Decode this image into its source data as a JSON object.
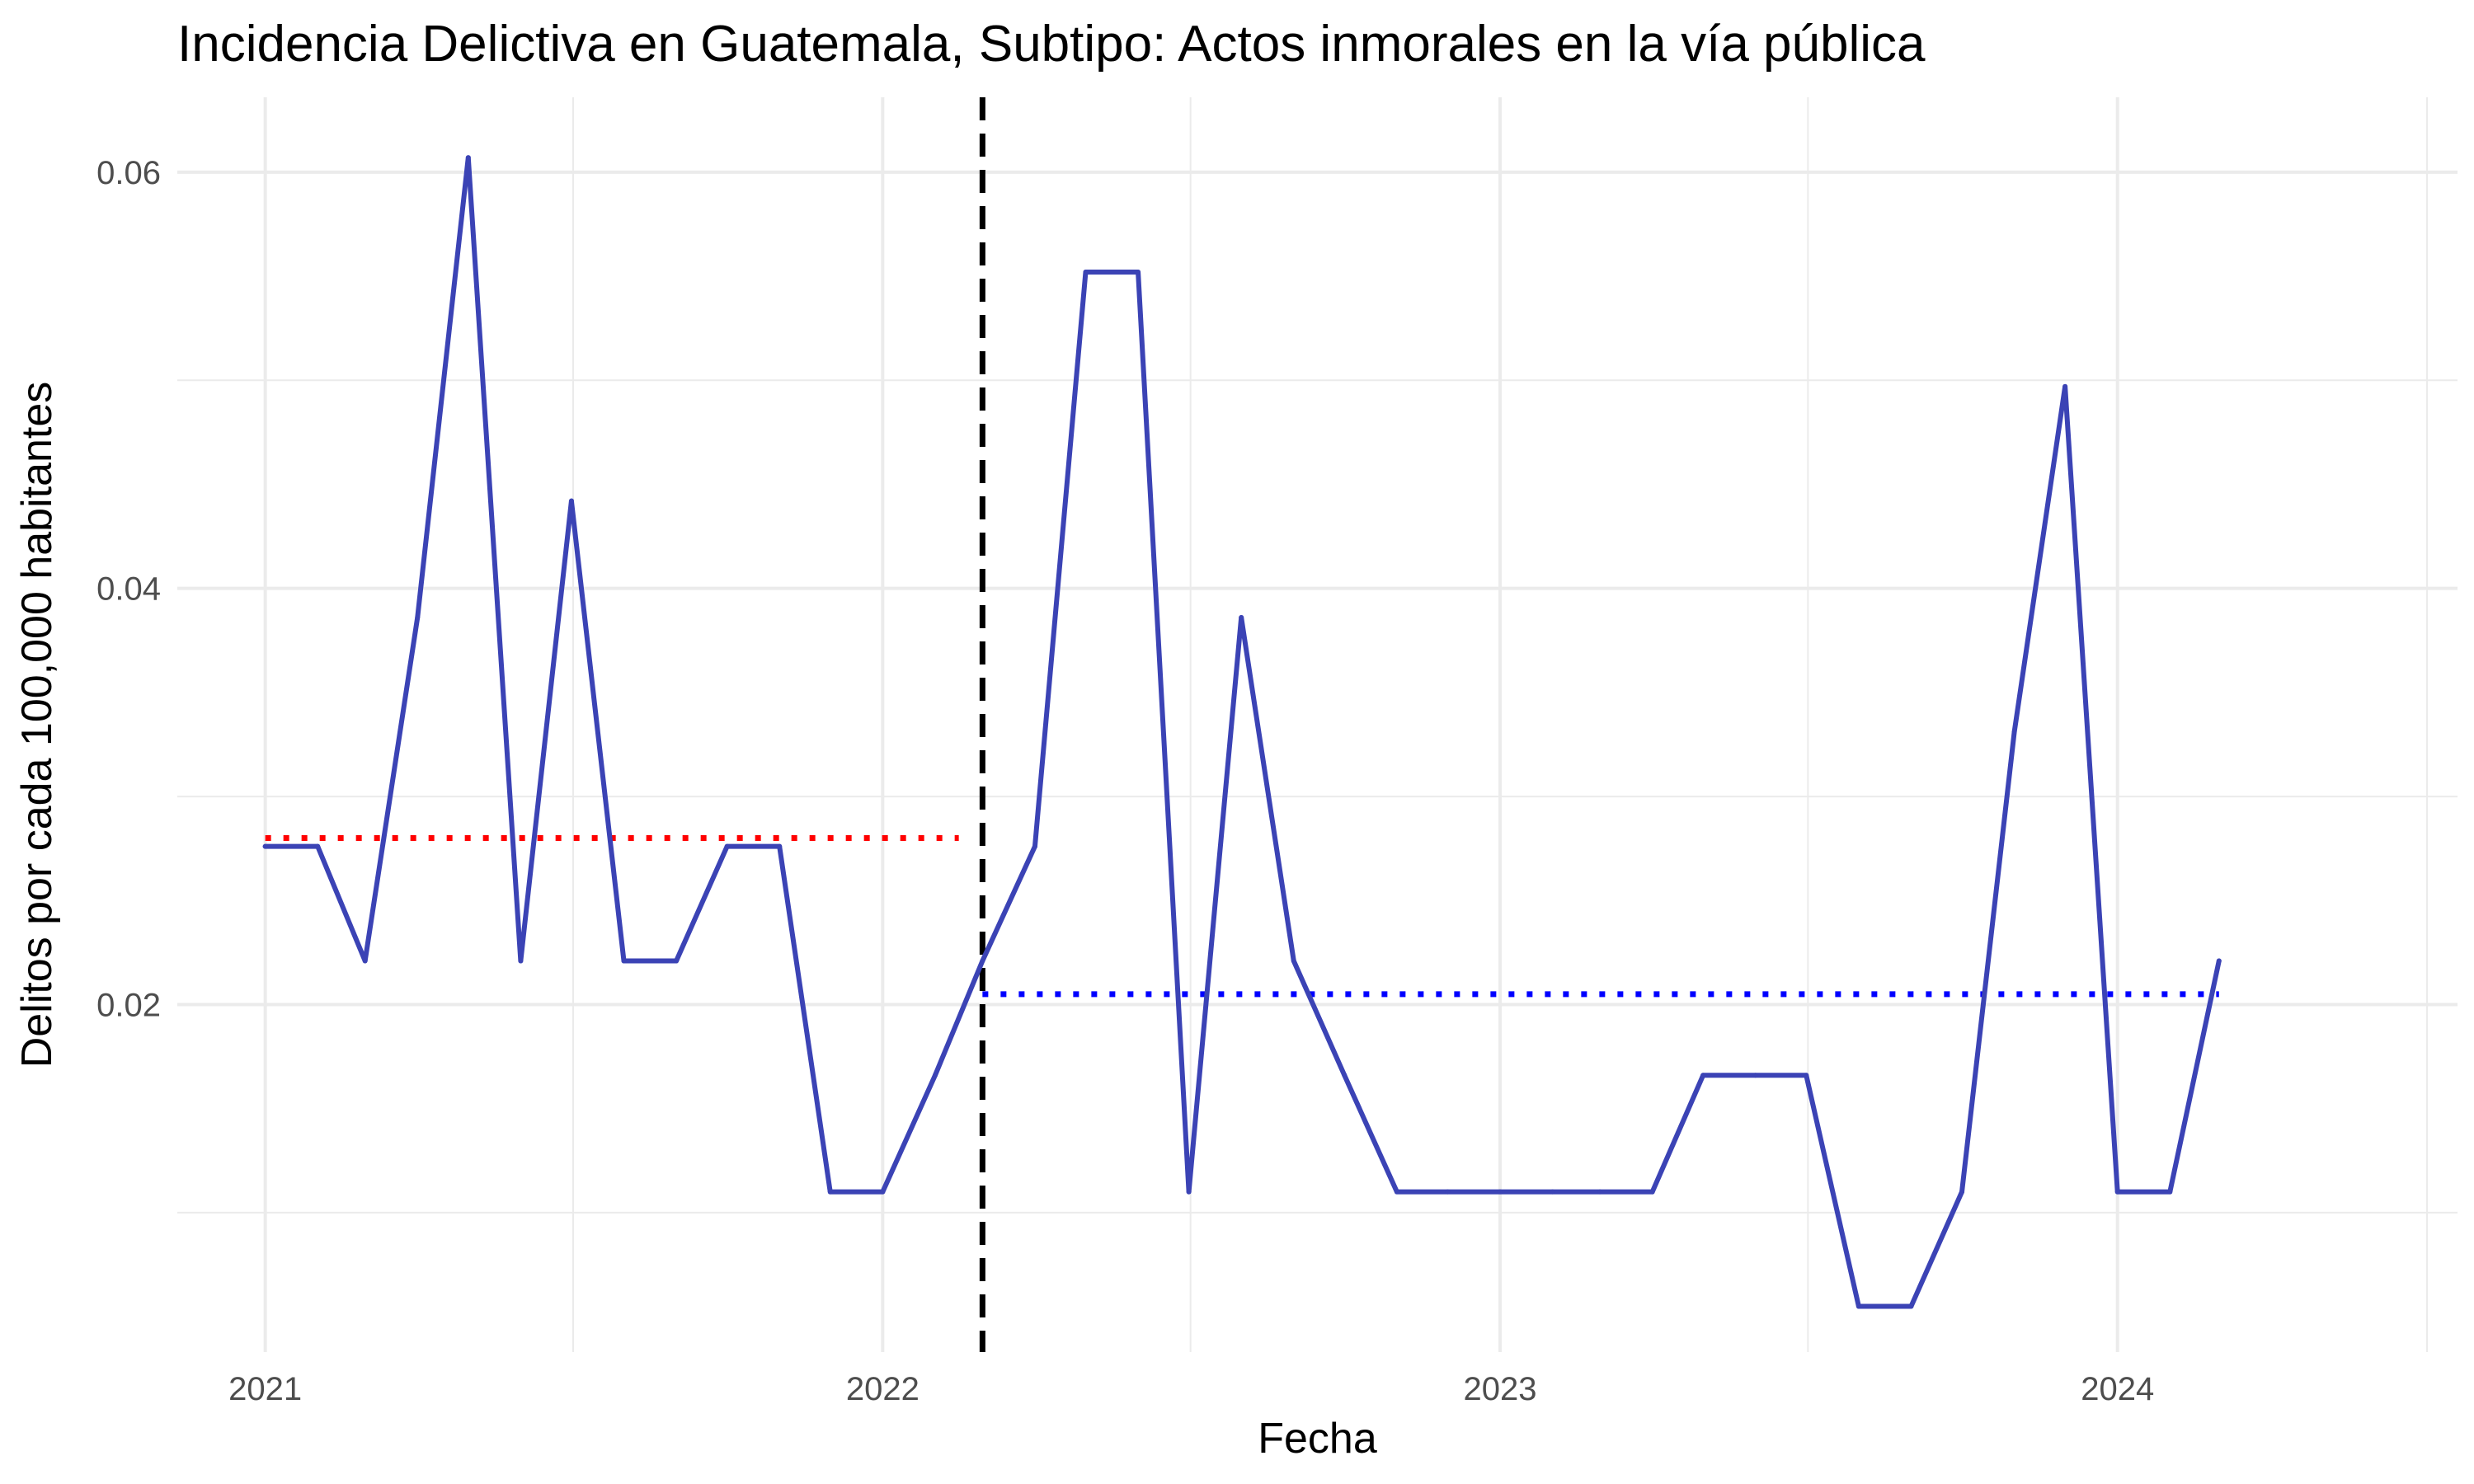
{
  "chart_data": {
    "type": "line",
    "title": "Incidencia Delictiva en Guatemala, Subtipo: Actos inmorales en la vía pública",
    "xlabel": "Fecha",
    "ylabel": "Delitos por cada 100,000 habitantes",
    "x_ticks": [
      "2021",
      "2022",
      "2023",
      "2024"
    ],
    "y_ticks": [
      "0.02",
      "0.04",
      "0.06"
    ],
    "xlim": [
      "2020-11-10",
      "2024-07-20"
    ],
    "ylim": [
      0.0033,
      0.0636
    ],
    "grid": true,
    "legend": "none",
    "series": [
      {
        "color": "#3B43B5",
        "x": [
          "2021-01",
          "2021-02",
          "2021-03",
          "2021-04",
          "2021-05",
          "2021-06",
          "2021-07",
          "2021-08",
          "2021-09",
          "2021-10",
          "2021-11",
          "2021-12",
          "2022-01",
          "2022-02",
          "2022-03",
          "2022-04",
          "2022-05",
          "2022-06",
          "2022-07",
          "2022-08",
          "2022-09",
          "2022-10",
          "2022-11",
          "2022-12",
          "2023-01",
          "2023-02",
          "2023-03",
          "2023-04",
          "2023-05",
          "2023-06",
          "2023-07",
          "2023-08",
          "2023-09",
          "2023-10",
          "2023-11",
          "2023-12",
          "2024-01",
          "2024-02",
          "2024-03"
        ],
        "y": [
          0.0276,
          0.0276,
          0.0221,
          0.0386,
          0.0607,
          0.0221,
          0.0442,
          0.0221,
          0.0221,
          0.0276,
          0.0276,
          0.011,
          0.011,
          0.0166,
          0.0221,
          0.0276,
          0.0552,
          0.0552,
          0.011,
          0.0386,
          0.0221,
          0.0166,
          0.011,
          0.011,
          0.011,
          0.011,
          0.011,
          0.011,
          0.0166,
          0.0166,
          0.0166,
          0.0055,
          0.0055,
          0.011,
          0.0331,
          0.0497,
          0.011,
          0.011,
          0.0221
        ]
      }
    ],
    "reference_lines": [
      {
        "kind": "vertical",
        "x": "2022-03-01",
        "style": "dashed",
        "color": "#000000"
      },
      {
        "kind": "horizontal",
        "y": 0.028,
        "x_from": "2021-01",
        "x_to": "2022-02-15",
        "style": "dotted",
        "color": "#FF0000"
      },
      {
        "kind": "horizontal",
        "y": 0.0205,
        "x_from": "2022-03-01",
        "x_to": "2024-03",
        "style": "dotted",
        "color": "#0000FF"
      }
    ]
  }
}
